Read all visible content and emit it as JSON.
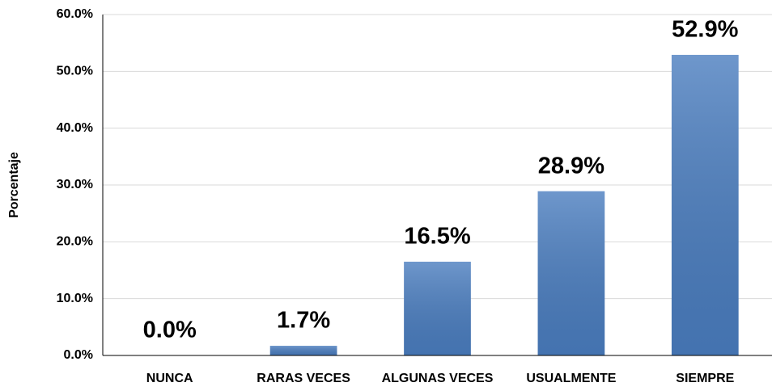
{
  "chart_data": {
    "type": "bar",
    "y_label": "Porcentaje",
    "categories": [
      "NUNCA",
      "RARAS VECES",
      "ALGUNAS VECES",
      "USUALMENTE",
      "SIEMPRE"
    ],
    "values": [
      0.0,
      1.7,
      16.5,
      28.9,
      52.9
    ],
    "value_labels": [
      "0.0%",
      "1.7%",
      "16.5%",
      "28.9%",
      "52.9%"
    ],
    "color": "#4a7dbf",
    "ylim": [
      0,
      60
    ],
    "yticks": [
      {
        "value": 0,
        "label": "0.0%"
      },
      {
        "value": 10,
        "label": "10.0%"
      },
      {
        "value": 20,
        "label": "20.0%"
      },
      {
        "value": 30,
        "label": "30.0%"
      },
      {
        "value": 40,
        "label": "40.0%"
      },
      {
        "value": 50,
        "label": "50.0%"
      },
      {
        "value": 60,
        "label": "60.0%"
      }
    ],
    "grid": true
  }
}
